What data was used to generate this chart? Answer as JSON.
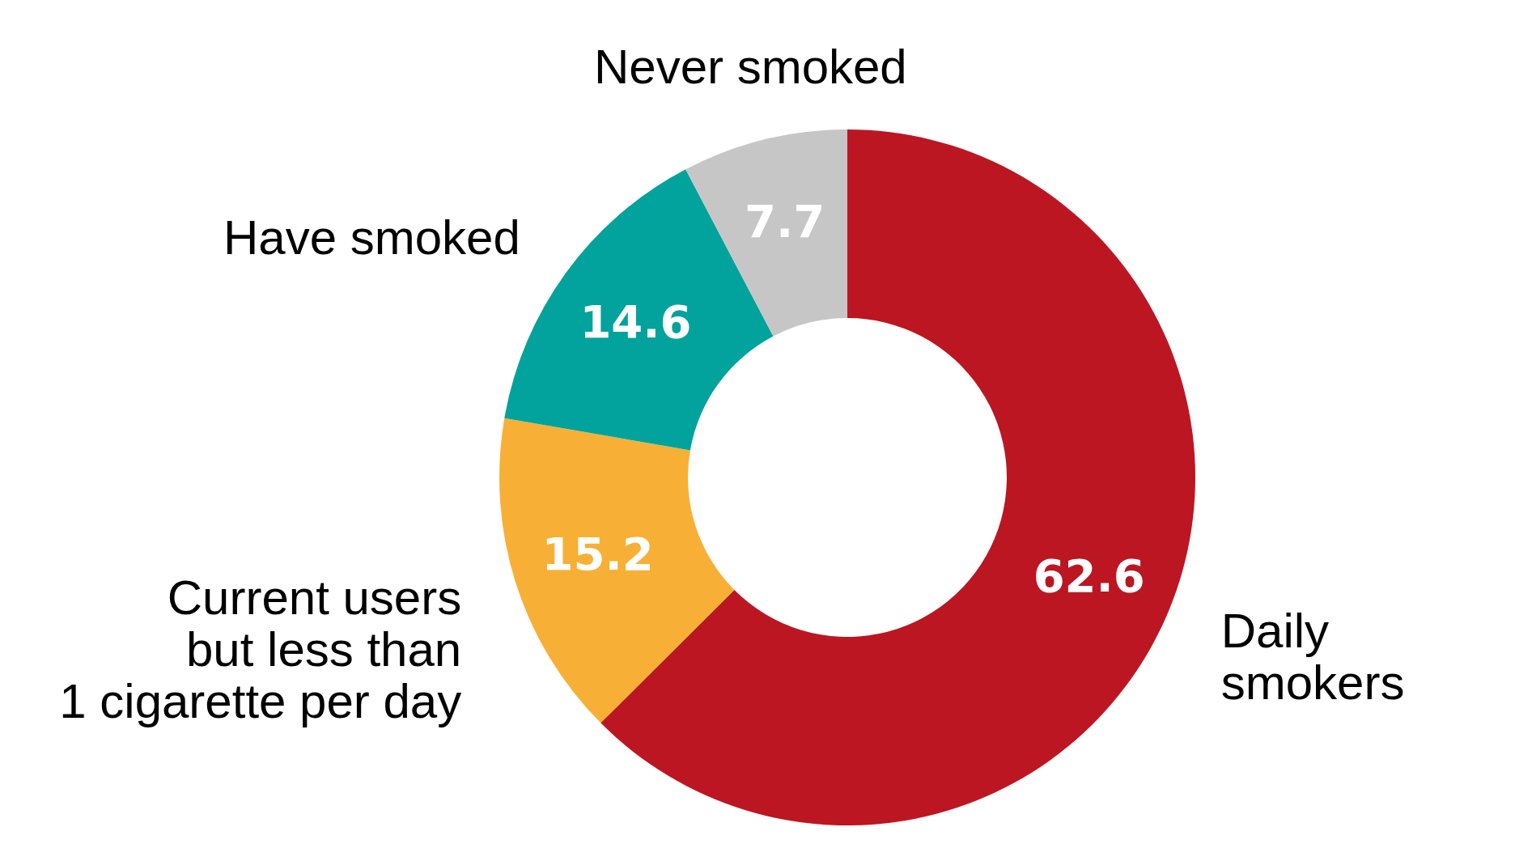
{
  "chart_data": {
    "type": "donut",
    "categories": [
      "Daily\nsmokers",
      "Current users\nbut less than\n1 cigarette per day",
      "Have smoked",
      "Never smoked"
    ],
    "values": [
      62.6,
      15.2,
      14.6,
      7.7
    ],
    "colors": [
      "#bc1622",
      "#f7b035",
      "#02a39d",
      "#c6c6c6"
    ],
    "data_labels": true
  }
}
